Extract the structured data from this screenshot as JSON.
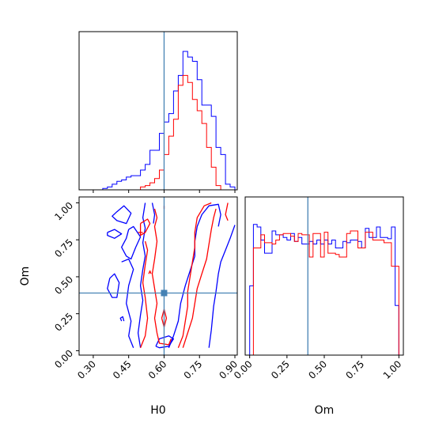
{
  "chart_data": {
    "type": "corner",
    "parameters": [
      "H0",
      "Om"
    ],
    "truth": {
      "H0": 0.6,
      "Om": 0.39
    },
    "truth_color": "#4682b4",
    "colors": {
      "blue": "#0000ff",
      "red": "#ff0000"
    },
    "axes": {
      "H0_hist": {
        "xlim": [
          0.24,
          0.91
        ],
        "ylim": [
          0,
          1.12
        ],
        "bin_edges": [
          0.24,
          0.26,
          0.28,
          0.3,
          0.32,
          0.34,
          0.36,
          0.38,
          0.4,
          0.42,
          0.44,
          0.46,
          0.48,
          0.5,
          0.52,
          0.54,
          0.56,
          0.58,
          0.6,
          0.62,
          0.64,
          0.66,
          0.68,
          0.7,
          0.72,
          0.74,
          0.76,
          0.78,
          0.8,
          0.82,
          0.84,
          0.86,
          0.88,
          0.9,
          0.91
        ],
        "series": [
          {
            "name": "blue",
            "values": [
              0,
              0,
              0,
              0,
              0,
              0.01,
              0.02,
              0.04,
              0.06,
              0.07,
              0.09,
              0.1,
              0.1,
              0.14,
              0.18,
              0.28,
              0.28,
              0.4,
              0.48,
              0.54,
              0.7,
              0.81,
              0.98,
              0.94,
              0.91,
              0.78,
              0.6,
              0.6,
              0.52,
              0.3,
              0.25,
              0.04,
              0.02,
              0
            ]
          },
          {
            "name": "red",
            "values": [
              0,
              0,
              0,
              0,
              0,
              0,
              0,
              0,
              0,
              0,
              0,
              0,
              0,
              0.02,
              0.03,
              0.05,
              0.08,
              0.14,
              0.25,
              0.38,
              0.5,
              0.74,
              0.81,
              0.76,
              0.64,
              0.56,
              0.47,
              0.3,
              0.16,
              0.03,
              0,
              0,
              0,
              0
            ]
          }
        ]
      },
      "H0_Om": {
        "xlim": [
          0.24,
          0.91
        ],
        "ylim": [
          -0.03,
          1.04
        ],
        "xticks": [
          0.3,
          0.45,
          0.6,
          0.75,
          0.9
        ],
        "xtick_labels": [
          "0.30",
          "0.45",
          "0.60",
          "0.75",
          "0.90"
        ],
        "yticks": [
          0.0,
          0.25,
          0.5,
          0.75,
          1.0
        ],
        "ytick_labels": [
          "0.00",
          "0.25",
          "0.50",
          "0.75",
          "1.00"
        ],
        "xlabel": "H0",
        "ylabel": "Om",
        "contours": [
          {
            "color": "blue",
            "points": [
              [
                0.4,
                0.94
              ],
              [
                0.43,
                0.98
              ],
              [
                0.46,
                0.93
              ],
              [
                0.44,
                0.86
              ],
              [
                0.4,
                0.88
              ],
              [
                0.38,
                0.91
              ],
              [
                0.4,
                0.94
              ]
            ]
          },
          {
            "color": "blue",
            "points": [
              [
                0.36,
                0.8
              ],
              [
                0.39,
                0.82
              ],
              [
                0.42,
                0.79
              ],
              [
                0.39,
                0.76
              ],
              [
                0.36,
                0.78
              ],
              [
                0.36,
                0.8
              ]
            ]
          },
          {
            "color": "blue",
            "points": [
              [
                0.45,
                0.82
              ],
              [
                0.47,
                0.84
              ],
              [
                0.5,
                0.77
              ],
              [
                0.48,
                0.7
              ],
              [
                0.46,
                0.62
              ],
              [
                0.44,
                0.64
              ],
              [
                0.42,
                0.7
              ],
              [
                0.44,
                0.76
              ],
              [
                0.45,
                0.82
              ]
            ]
          },
          {
            "color": "blue",
            "points": [
              [
                0.37,
                0.49
              ],
              [
                0.39,
                0.52
              ],
              [
                0.41,
                0.46
              ],
              [
                0.4,
                0.36
              ],
              [
                0.38,
                0.36
              ],
              [
                0.36,
                0.42
              ],
              [
                0.37,
                0.49
              ]
            ]
          },
          {
            "color": "blue",
            "points": [
              [
                0.42,
                0.2
              ],
              [
                0.415,
                0.22
              ],
              [
                0.425,
                0.23
              ],
              [
                0.43,
                0.2
              ]
            ]
          },
          {
            "color": "blue",
            "points": [
              [
                0.47,
                0.02
              ],
              [
                0.45,
                0.1
              ],
              [
                0.46,
                0.2
              ],
              [
                0.44,
                0.32
              ],
              [
                0.45,
                0.44
              ],
              [
                0.47,
                0.55
              ],
              [
                0.45,
                0.62
              ],
              [
                0.42,
                0.6
              ]
            ]
          },
          {
            "color": "blue",
            "points": [
              [
                0.52,
                1.0
              ],
              [
                0.51,
                0.9
              ],
              [
                0.52,
                0.83
              ],
              [
                0.51,
                0.73
              ],
              [
                0.52,
                0.64
              ],
              [
                0.51,
                0.55
              ],
              [
                0.5,
                0.44
              ],
              [
                0.51,
                0.34
              ],
              [
                0.5,
                0.24
              ],
              [
                0.49,
                0.12
              ],
              [
                0.5,
                0.02
              ]
            ]
          },
          {
            "color": "blue",
            "points": [
              [
                0.55,
                1.0
              ],
              [
                0.56,
                0.92
              ],
              [
                0.555,
                0.86
              ]
            ]
          },
          {
            "color": "blue",
            "points": [
              [
                0.565,
                0.03
              ],
              [
                0.58,
                0.08
              ],
              [
                0.62,
                0.1
              ],
              [
                0.64,
                0.08
              ],
              [
                0.62,
                0.03
              ],
              [
                0.58,
                0.02
              ],
              [
                0.565,
                0.03
              ]
            ]
          },
          {
            "color": "blue",
            "points": [
              [
                0.62,
                0.02
              ],
              [
                0.64,
                0.1
              ],
              [
                0.66,
                0.2
              ],
              [
                0.67,
                0.32
              ],
              [
                0.69,
                0.44
              ],
              [
                0.71,
                0.54
              ],
              [
                0.73,
                0.64
              ],
              [
                0.73,
                0.74
              ],
              [
                0.74,
                0.84
              ],
              [
                0.76,
                0.92
              ],
              [
                0.79,
                0.98
              ],
              [
                0.83,
                0.99
              ],
              [
                0.84,
                0.92
              ],
              [
                0.83,
                0.84
              ]
            ]
          },
          {
            "color": "blue",
            "points": [
              [
                0.79,
                0.02
              ],
              [
                0.8,
                0.14
              ],
              [
                0.81,
                0.3
              ],
              [
                0.82,
                0.4
              ],
              [
                0.83,
                0.52
              ],
              [
                0.84,
                0.6
              ],
              [
                0.86,
                0.68
              ],
              [
                0.88,
                0.76
              ],
              [
                0.9,
                0.85
              ]
            ]
          },
          {
            "color": "red",
            "points": [
              [
                0.5,
                0.86
              ],
              [
                0.53,
                0.89
              ],
              [
                0.54,
                0.86
              ],
              [
                0.52,
                0.8
              ],
              [
                0.5,
                0.78
              ],
              [
                0.5,
                0.86
              ]
            ]
          },
          {
            "color": "red",
            "points": [
              [
                0.49,
                0.8
              ],
              [
                0.51,
                0.8
              ]
            ]
          },
          {
            "color": "red",
            "points": [
              [
                0.535,
                0.52
              ],
              [
                0.54,
                0.54
              ],
              [
                0.545,
                0.52
              ]
            ]
          },
          {
            "color": "red",
            "points": [
              [
                0.5,
                0.02
              ],
              [
                0.52,
                0.1
              ],
              [
                0.53,
                0.22
              ],
              [
                0.52,
                0.36
              ],
              [
                0.51,
                0.46
              ],
              [
                0.52,
                0.58
              ],
              [
                0.53,
                0.68
              ],
              [
                0.52,
                0.74
              ]
            ]
          },
          {
            "color": "red",
            "points": [
              [
                0.56,
                0.96
              ],
              [
                0.57,
                0.9
              ],
              [
                0.56,
                0.84
              ],
              [
                0.57,
                0.74
              ],
              [
                0.56,
                0.62
              ],
              [
                0.55,
                0.52
              ],
              [
                0.56,
                0.42
              ],
              [
                0.57,
                0.32
              ],
              [
                0.56,
                0.22
              ],
              [
                0.57,
                0.12
              ],
              [
                0.58,
                0.05
              ],
              [
                0.62,
                0.04
              ],
              [
                0.63,
                0.08
              ]
            ]
          },
          {
            "color": "red",
            "points": [
              [
                0.6,
                0.98
              ],
              [
                0.6,
                0.96
              ]
            ]
          },
          {
            "color": "red",
            "points": [
              [
                0.59,
                0.22
              ],
              [
                0.6,
                0.16
              ],
              [
                0.61,
                0.22
              ],
              [
                0.6,
                0.28
              ],
              [
                0.59,
                0.22
              ]
            ]
          },
          {
            "color": "red",
            "points": [
              [
                0.66,
                0.02
              ],
              [
                0.68,
                0.1
              ],
              [
                0.69,
                0.2
              ],
              [
                0.7,
                0.3
              ],
              [
                0.7,
                0.4
              ],
              [
                0.71,
                0.5
              ],
              [
                0.72,
                0.6
              ],
              [
                0.73,
                0.7
              ],
              [
                0.73,
                0.8
              ],
              [
                0.74,
                0.9
              ],
              [
                0.77,
                0.98
              ],
              [
                0.8,
                1.0
              ]
            ]
          },
          {
            "color": "red",
            "points": [
              [
                0.68,
                0.02
              ],
              [
                0.7,
                0.12
              ],
              [
                0.72,
                0.22
              ],
              [
                0.73,
                0.32
              ],
              [
                0.74,
                0.42
              ],
              [
                0.76,
                0.52
              ],
              [
                0.78,
                0.62
              ],
              [
                0.79,
                0.72
              ],
              [
                0.8,
                0.82
              ],
              [
                0.81,
                0.9
              ],
              [
                0.82,
                0.96
              ]
            ]
          },
          {
            "color": "red",
            "points": [
              [
                0.87,
                1.0
              ],
              [
                0.86,
                0.92
              ],
              [
                0.87,
                0.88
              ]
            ]
          }
        ]
      },
      "Om_hist": {
        "xlim": [
          -0.03,
          1.03
        ],
        "ylim": [
          0,
          1.21
        ],
        "xticks": [
          0.0,
          0.25,
          0.5,
          0.75,
          1.0
        ],
        "xtick_labels": [
          "0.00",
          "0.25",
          "0.50",
          "0.75",
          "1.00"
        ],
        "xlabel": "Om",
        "bin_edges": [
          -0.03,
          0.0,
          0.025,
          0.05,
          0.075,
          0.1,
          0.125,
          0.15,
          0.175,
          0.2,
          0.225,
          0.25,
          0.275,
          0.3,
          0.325,
          0.35,
          0.375,
          0.4,
          0.425,
          0.45,
          0.475,
          0.5,
          0.525,
          0.55,
          0.575,
          0.6,
          0.625,
          0.65,
          0.675,
          0.7,
          0.725,
          0.75,
          0.775,
          0.8,
          0.825,
          0.85,
          0.875,
          0.9,
          0.925,
          0.95,
          0.975,
          1.0,
          1.03
        ],
        "series": [
          {
            "name": "blue",
            "values": [
              0,
              0.53,
              1.0,
              0.98,
              0.88,
              0.78,
              0.78,
              0.95,
              0.92,
              0.92,
              0.9,
              0.88,
              0.93,
              0.87,
              0.9,
              0.85,
              0.85,
              0.87,
              0.85,
              0.88,
              0.85,
              0.88,
              0.85,
              0.88,
              0.82,
              0.82,
              0.87,
              0.86,
              0.88,
              0.88,
              0.87,
              0.82,
              0.97,
              0.9,
              0.9,
              0.98,
              0.9,
              0.9,
              0.89,
              0.98,
              0.38,
              0
            ]
          },
          {
            "name": "red",
            "values": [
              0,
              0,
              0.82,
              0.82,
              0.92,
              0.86,
              0.86,
              0.85,
              0.88,
              0.92,
              0.93,
              0.93,
              0.91,
              0.87,
              0.93,
              0.92,
              0.92,
              0.75,
              0.93,
              0.93,
              0.75,
              0.94,
              0.78,
              0.78,
              0.77,
              0.75,
              0.75,
              0.93,
              0.95,
              0.95,
              0.82,
              0.82,
              0.94,
              0.94,
              0.88,
              0.88,
              0.88,
              0.86,
              0.86,
              0.68,
              0.68,
              0
            ]
          }
        ]
      }
    }
  }
}
